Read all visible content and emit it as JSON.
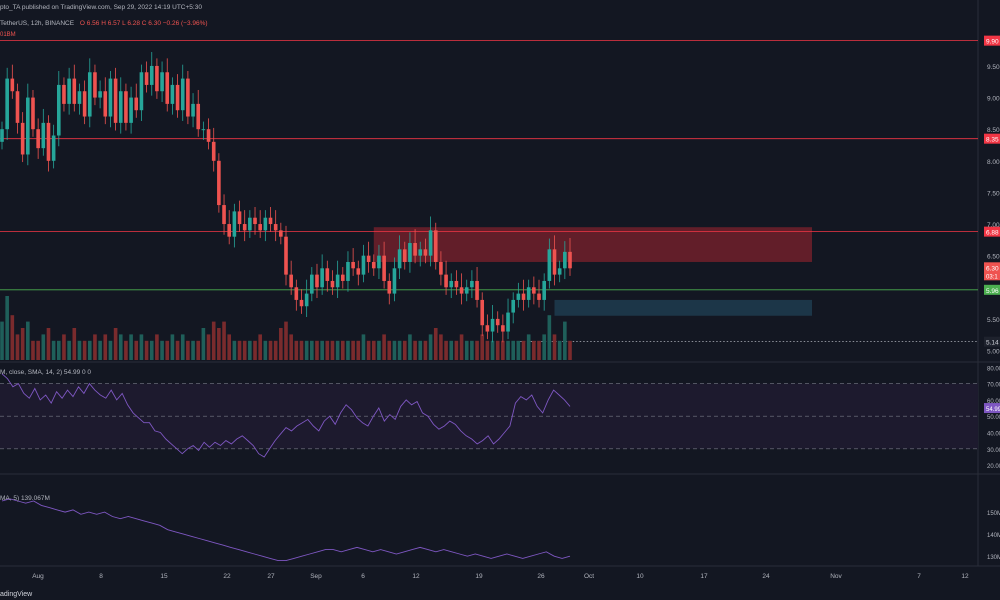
{
  "header": {
    "published": "pto_TA published on TradingView.com, Sep 29, 2022 14:19 UTC+5:30",
    "symbol_line": "TetherUS, 12h, BINANCE",
    "ohlc": "O 6.56  H 6.57  L 6.28  C 6.30  −0.26 (−3.96%)",
    "vol": "01BM"
  },
  "footer": {
    "brand": "adingView"
  },
  "colors": {
    "background": "#131722",
    "up": "#26a69a",
    "down": "#ef5350",
    "level_red": "#f23645",
    "level_green": "#4caf50",
    "supply_zone": "#6b1f2a",
    "demand_zone": "#1e3a4c",
    "indicator_line": "#7e57c2",
    "grid_text": "#b2b5be"
  },
  "chart_data": [
    {
      "type": "candlestick",
      "panel": "price",
      "x_tick_labels": [
        "Aug",
        "8",
        "15",
        "22",
        "27",
        "Sep",
        "6",
        "12",
        "19",
        "26",
        "Oct",
        "10",
        "17",
        "24",
        "Nov",
        "7",
        "12"
      ],
      "y_tick_labels": [
        "9.50",
        "9.00",
        "8.50",
        "8.00",
        "7.50",
        "7.00",
        "6.50",
        "5.50",
        "5.00"
      ],
      "ylim": [
        4.85,
        10.1
      ],
      "series_close": [
        8.5,
        9.3,
        9.1,
        8.6,
        8.1,
        9.0,
        8.5,
        8.2,
        8.6,
        8.0,
        8.4,
        9.2,
        8.9,
        9.3,
        8.9,
        9.1,
        8.7,
        9.4,
        9.0,
        9.1,
        8.7,
        9.3,
        8.6,
        9.1,
        8.6,
        9.0,
        8.8,
        9.4,
        9.2,
        9.5,
        9.1,
        9.4,
        8.9,
        9.2,
        8.8,
        9.3,
        8.7,
        8.9,
        8.5,
        8.5,
        8.3,
        8.0,
        7.3,
        7.0,
        6.8,
        7.2,
        7.0,
        6.9,
        7.1,
        7.0,
        6.9,
        7.1,
        7.0,
        6.9,
        6.8,
        6.2,
        6.0,
        5.8,
        5.7,
        5.9,
        6.2,
        6.0,
        6.3,
        6.1,
        6.0,
        6.2,
        6.1,
        6.4,
        6.3,
        6.2,
        6.5,
        6.4,
        6.3,
        6.5,
        6.1,
        5.9,
        6.3,
        6.6,
        6.4,
        6.7,
        6.5,
        6.6,
        6.5,
        6.9,
        6.4,
        6.2,
        6.0,
        6.1,
        6.0,
        5.9,
        6.0,
        6.1,
        5.8,
        5.4,
        5.3,
        5.5,
        5.4,
        5.3,
        5.6,
        5.8,
        5.9,
        5.8,
        6.0,
        5.9,
        5.8,
        6.1,
        6.6,
        6.2,
        6.3,
        6.56,
        6.3
      ],
      "volume_relative": [
        0.6,
        1.0,
        0.7,
        0.4,
        0.5,
        0.6,
        0.3,
        0.3,
        0.4,
        0.5,
        0.3,
        0.3,
        0.4,
        0.3,
        0.5,
        0.3,
        0.3,
        0.3,
        0.4,
        0.3,
        0.4,
        0.3,
        0.5,
        0.4,
        0.3,
        0.4,
        0.3,
        0.4,
        0.3,
        0.3,
        0.4,
        0.3,
        0.3,
        0.4,
        0.3,
        0.4,
        0.3,
        0.3,
        0.3,
        0.5,
        0.4,
        0.6,
        0.5,
        0.6,
        0.4,
        0.3,
        0.3,
        0.3,
        0.3,
        0.3,
        0.4,
        0.3,
        0.3,
        0.3,
        0.5,
        0.6,
        0.4,
        0.3,
        0.3,
        0.3,
        0.3,
        0.3,
        0.3,
        0.3,
        0.3,
        0.3,
        0.3,
        0.3,
        0.3,
        0.3,
        0.4,
        0.3,
        0.3,
        0.3,
        0.4,
        0.3,
        0.3,
        0.3,
        0.3,
        0.4,
        0.3,
        0.3,
        0.3,
        0.4,
        0.5,
        0.4,
        0.3,
        0.3,
        0.3,
        0.4,
        0.3,
        0.3,
        0.3,
        0.4,
        0.3,
        0.3,
        0.3,
        0.3,
        0.3,
        0.3,
        0.3,
        0.3,
        0.4,
        0.3,
        0.3,
        0.4,
        0.7,
        0.4,
        0.3,
        0.6,
        0.3
      ],
      "levels": [
        {
          "price": 9.9,
          "label": "9.90",
          "color": "red"
        },
        {
          "price": 8.35,
          "label": "8.35",
          "color": "red"
        },
        {
          "price": 6.88,
          "label": "6.88",
          "color": "red"
        },
        {
          "price": 5.96,
          "label": "5.96",
          "color": "green"
        },
        {
          "price": 5.14,
          "label": "5.14",
          "color": "dotted"
        }
      ],
      "zones": [
        {
          "name": "supply",
          "from_price": 6.4,
          "to_price": 6.95
        },
        {
          "name": "demand",
          "from_price": 5.55,
          "to_price": 5.8
        }
      ],
      "last_price": {
        "label": "6.30",
        "sub": "03:1"
      }
    },
    {
      "type": "line",
      "panel": "rsi",
      "legend": "M, close, SMA, 14, 2)  54.99  0  0",
      "y_tick_labels": [
        "80.00",
        "70.00",
        "60.00",
        "50.00",
        "40.00",
        "30.00",
        "20.00"
      ],
      "bands": [
        70,
        50,
        30
      ],
      "ylim": [
        17,
        82
      ],
      "values": [
        76,
        73,
        68,
        70,
        64,
        61,
        67,
        60,
        63,
        58,
        65,
        61,
        66,
        62,
        68,
        64,
        70,
        66,
        63,
        61,
        66,
        60,
        64,
        57,
        52,
        49,
        46,
        46,
        41,
        40,
        36,
        33,
        30,
        27,
        30,
        32,
        29,
        34,
        31,
        34,
        32,
        35,
        33,
        36,
        38,
        35,
        32,
        27,
        25,
        30,
        35,
        39,
        43,
        41,
        44,
        46,
        48,
        44,
        41,
        47,
        50,
        45,
        52,
        57,
        54,
        49,
        46,
        44,
        50,
        55,
        47,
        51,
        48,
        56,
        60,
        57,
        59,
        52,
        50,
        45,
        42,
        44,
        47,
        45,
        41,
        38,
        36,
        33,
        35,
        38,
        33,
        36,
        40,
        44,
        58,
        62,
        60,
        63,
        56,
        52,
        60,
        66,
        63,
        60,
        56
      ],
      "last_value_label": "54.99"
    },
    {
      "type": "line",
      "panel": "obv",
      "legend": "MA, 5)  139.067M",
      "y_tick_labels": [
        "150M",
        "140M",
        "130M"
      ],
      "ylim": [
        126,
        160
      ],
      "values": [
        155,
        156,
        155,
        154,
        155,
        153,
        152,
        151,
        150,
        151,
        149,
        150,
        149,
        150,
        148,
        147,
        148,
        147,
        146,
        145,
        144,
        142,
        141,
        140,
        139,
        138,
        137,
        136,
        135,
        134,
        133,
        132,
        131,
        130,
        129,
        128,
        128,
        129,
        130,
        131,
        132,
        133,
        133,
        132,
        133,
        134,
        133,
        132,
        133,
        132,
        131,
        132,
        133,
        134,
        133,
        132,
        133,
        132,
        131,
        130,
        131,
        130,
        129,
        130,
        131,
        130,
        129,
        130,
        131,
        132,
        130,
        129,
        130
      ]
    }
  ]
}
